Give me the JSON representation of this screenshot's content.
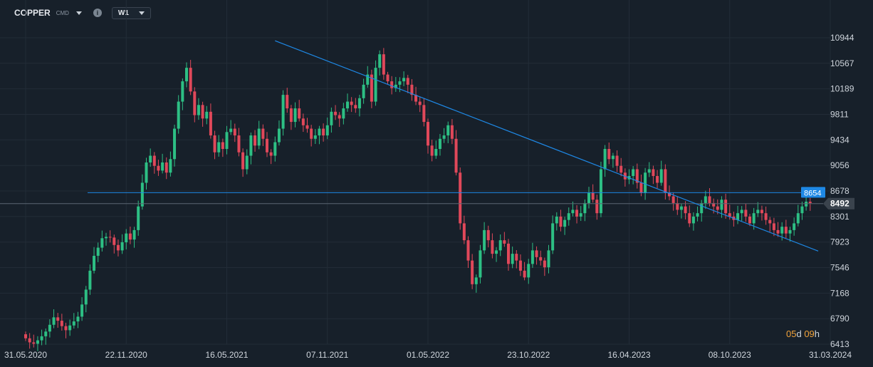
{
  "toolbar": {
    "symbol": "COPPER",
    "symbol_sub": "CMD",
    "info_icon": "i",
    "timeframe": "W1"
  },
  "colors": {
    "background": "#17202a",
    "up": "#2dbf84",
    "down": "#e0485a",
    "trendline": "#1e88e5",
    "resistance_label_bg": "#1e88e5",
    "price_label_bg": "#3a434d"
  },
  "countdown": {
    "d_value": "05",
    "d_unit": "d",
    "h_value": "09",
    "h_unit": "h"
  },
  "chart_data": {
    "type": "candlestick",
    "symbol": "COPPER",
    "timeframe": "W1",
    "y_ticks": [
      10944,
      10567,
      10189,
      9811,
      9434,
      9056,
      8678,
      8301,
      7923,
      7546,
      7168,
      6790,
      6413
    ],
    "x_ticks": [
      "31.05.2020",
      "22.11.2020",
      "16.05.2021",
      "07.11.2021",
      "01.05.2022",
      "23.10.2022",
      "16.04.2023",
      "08.10.2023",
      "31.03.2024"
    ],
    "ylim": [
      6413,
      11400
    ],
    "x_start": "2020-05-31",
    "x_end": "2024-03-31",
    "candle_interval_days": 7,
    "first_candle": "2020-05-31",
    "horizontal_level": {
      "value": 8654,
      "label": "8654"
    },
    "current_price": {
      "value": 8492,
      "label": "8492"
    },
    "trendline": [
      {
        "date": "2021-08-08",
        "value": 10900
      },
      {
        "date": "2024-03-10",
        "value": 7790
      }
    ],
    "closes": [
      6500,
      6440,
      6420,
      6470,
      6530,
      6600,
      6700,
      6810,
      6760,
      6680,
      6620,
      6690,
      6750,
      6820,
      7000,
      7220,
      7500,
      7720,
      7840,
      7980,
      8000,
      7990,
      7880,
      7800,
      7920,
      8050,
      7960,
      8100,
      8450,
      8800,
      9100,
      9200,
      9050,
      8980,
      9100,
      8950,
      9150,
      9600,
      10000,
      10300,
      10500,
      10150,
      9800,
      9950,
      9750,
      9850,
      9500,
      9250,
      9400,
      9300,
      9550,
      9600,
      9500,
      9250,
      9000,
      9200,
      9500,
      9350,
      9600,
      9450,
      9250,
      9200,
      9400,
      9600,
      10100,
      9900,
      9700,
      9900,
      9750,
      9650,
      9600,
      9450,
      9500,
      9600,
      9500,
      9650,
      9850,
      9800,
      9750,
      9900,
      10000,
      9950,
      9900,
      10050,
      10250,
      10400,
      10000,
      10500,
      10700,
      10400,
      10300,
      10200,
      10250,
      10300,
      10350,
      10250,
      10100,
      10000,
      9950,
      9700,
      9350,
      9200,
      9300,
      9450,
      9500,
      9650,
      9450,
      8950,
      8200,
      7950,
      7650,
      7300,
      7400,
      7800,
      8100,
      7950,
      7750,
      7800,
      7950,
      7900,
      7600,
      7750,
      7650,
      7500,
      7400,
      7600,
      7800,
      7700,
      7650,
      7550,
      7800,
      8200,
      8300,
      8150,
      8250,
      8350,
      8400,
      8300,
      8350,
      8500,
      8650,
      8550,
      8350,
      9000,
      9300,
      9150,
      9200,
      9050,
      8950,
      8850,
      8900,
      9000,
      8800,
      8650,
      8950,
      9000,
      8900,
      8800,
      9000,
      8650,
      8600,
      8500,
      8400,
      8450,
      8350,
      8200,
      8300,
      8350,
      8500,
      8600,
      8500,
      8450,
      8400,
      8550,
      8350,
      8300,
      8250,
      8350,
      8400,
      8300,
      8200,
      8350,
      8400,
      8350,
      8250,
      8200,
      8100,
      8050,
      8150,
      8050,
      8100,
      8200,
      8350,
      8450,
      8520,
      8500
    ]
  }
}
